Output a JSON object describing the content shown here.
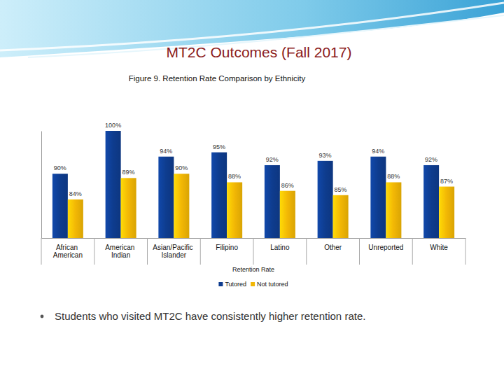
{
  "header": {
    "title": "MT2C Outcomes (Fall 2017)"
  },
  "chart_data": {
    "type": "bar",
    "title": "Figure 9. Retention Rate Comparison by Ethnicity",
    "x_label": "Retention Rate",
    "categories": [
      "African American",
      "American Indian",
      "Asian/Pacific Islander",
      "Filipino",
      "Latino",
      "Other",
      "Unreported",
      "White"
    ],
    "series": [
      {
        "name": "Tutored",
        "color": "#0e3c8e",
        "values": [
          90,
          100,
          94,
          95,
          92,
          93,
          94,
          92
        ],
        "value_labels": [
          "90%",
          "100%",
          "94%",
          "95%",
          "92%",
          "93%",
          "94%",
          "92%"
        ]
      },
      {
        "name": "Not tutored",
        "color": "#f2b705",
        "values": [
          84,
          89,
          90,
          88,
          86,
          85,
          88,
          87
        ],
        "value_labels": [
          "84%",
          "89%",
          "90%",
          "88%",
          "86%",
          "85%",
          "88%",
          "87%"
        ]
      }
    ],
    "ylim": [
      75,
      100
    ],
    "yticks": [],
    "grid": false,
    "tick_labels": "x",
    "data_labels": true,
    "legend": "bottom"
  },
  "notes": [
    "Students who visited MT2C have consistently higher retention rate."
  ]
}
